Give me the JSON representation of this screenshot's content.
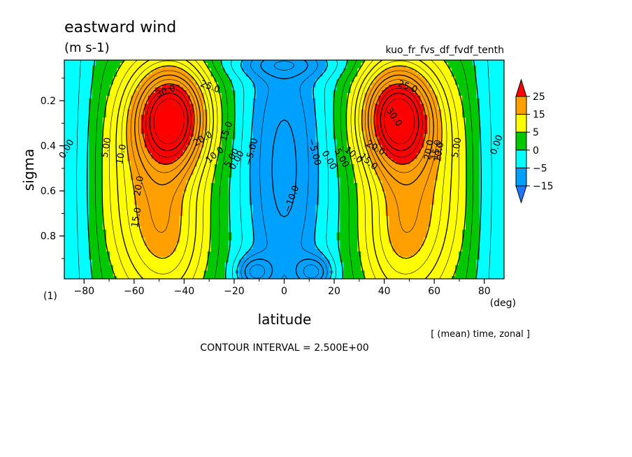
{
  "chart_data": {
    "type": "contour",
    "title": "eastward wind",
    "units": "(m s-1)",
    "experiment": "kuo_fr_fvs_df_fvdf_tenth",
    "xlabel": "latitude",
    "xunit": "(deg)",
    "ylabel": "sigma",
    "xlim": [
      -87.9,
      87.9
    ],
    "ylim": [
      0.02,
      0.99
    ],
    "y_inverted": true,
    "x_ticks": [
      -80,
      -60,
      -40,
      -20,
      0,
      20,
      40,
      60,
      80
    ],
    "y_ticks": [
      0.2,
      0.4,
      0.6,
      0.8
    ],
    "x_tick_labels": [
      "−80",
      "−60",
      "−40",
      "−20",
      "0",
      "20",
      "40",
      "60",
      "80"
    ],
    "y_tick_labels": [
      "0.2",
      "0.4",
      "0.6",
      "0.8"
    ],
    "panel_label": "(1)",
    "averaging_note": "[ (mean) time, zonal ]",
    "contour_interval_text": "CONTOUR INTERVAL = 2.500E+00",
    "colorbar": {
      "levels": [
        -15,
        -5,
        0,
        5,
        15,
        25
      ],
      "labels": [
        "25",
        "15",
        "5",
        "0",
        "−5",
        "−15"
      ],
      "colors": [
        "#1e78ff",
        "#00a0ff",
        "#00ffff",
        "#00c800",
        "#ffff00",
        "#ffa000",
        "#ff0000"
      ]
    },
    "contour_labels": [
      "0.00",
      "5.00",
      "10.0",
      "15.0",
      "20.0",
      "25.0",
      "30.0",
      "−5.00",
      "−10.0"
    ],
    "features": [
      {
        "name": "southern jet",
        "lat": -45,
        "sigma": 0.27,
        "value": 31
      },
      {
        "name": "northern jet",
        "lat": 45,
        "sigma": 0.27,
        "value": 31
      },
      {
        "name": "equatorial easterlies near surface",
        "lat": -12,
        "sigma": 0.95,
        "value": -17
      },
      {
        "name": "equatorial easterlies near surface",
        "lat": 12,
        "sigma": 0.95,
        "value": -17
      },
      {
        "name": "upper-level easterlies",
        "lat": 0,
        "sigma": 0.05,
        "value": -12
      }
    ]
  }
}
